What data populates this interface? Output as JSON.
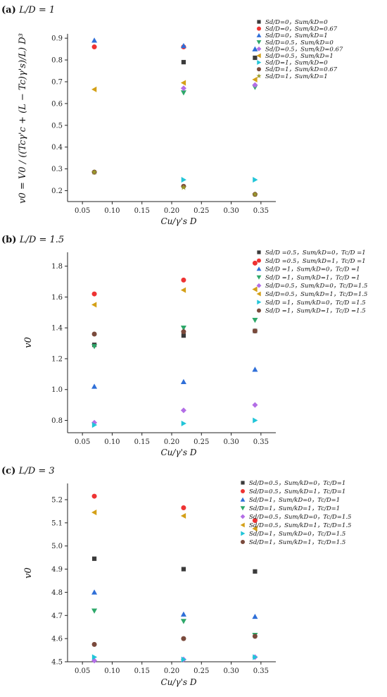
{
  "symbols": [
    "square",
    "circle",
    "triangle-up",
    "triangle-down",
    "diamond",
    "triangle-left",
    "triangle-right",
    "circle",
    "star"
  ],
  "chart_data": [
    {
      "type": "scatter",
      "label_tag": "(a)",
      "title": "L/D = 1",
      "xlabel": "Cu/γ's D",
      "ylabel": "v0 = V0 / ((Tcγ'c + (L − Tc)γ's)/L) D³",
      "xlim": [
        0.025,
        0.375
      ],
      "ylim": [
        0.15,
        0.92
      ],
      "xticks": [
        0.05,
        0.1,
        0.15,
        0.2,
        0.25,
        0.3,
        0.35
      ],
      "xtick_labels": [
        "0.05",
        "0.10",
        "0.15",
        "0.20",
        "0.25",
        "0.30",
        "0.35"
      ],
      "yticks": [
        0.2,
        0.3,
        0.4,
        0.5,
        0.6,
        0.7,
        0.8,
        0.9
      ],
      "ytick_labels": [
        "0.2",
        "0.3",
        "0.4",
        "0.5",
        "0.6",
        "0.7",
        "0.8",
        "0.9"
      ],
      "grid": false,
      "legend_position": "top-right",
      "x": [
        0.07,
        0.22,
        0.34
      ],
      "series": [
        {
          "name": "Sd/D=0，Sum/kD=0",
          "color": "#3a3a3a",
          "symbol": "square",
          "values": [
            null,
            0.79,
            0.81
          ]
        },
        {
          "name": "Sd/D=0，Sum/kD=0.67",
          "color": "#ee3333",
          "symbol": "circle",
          "values": [
            0.86,
            0.86,
            null
          ]
        },
        {
          "name": "Sd/D=0，Sum/kD=1",
          "color": "#2f6fd8",
          "symbol": "triangle-up",
          "values": [
            0.89,
            0.865,
            0.85
          ]
        },
        {
          "name": "Sd/D=0.5，Sum/kD=0",
          "color": "#2ea86a",
          "symbol": "triangle-down",
          "values": [
            null,
            0.65,
            0.675
          ]
        },
        {
          "name": "Sd/D=0.5，Sum/kD=0.67",
          "color": "#b36ee6",
          "symbol": "diamond",
          "values": [
            null,
            0.67,
            0.685
          ]
        },
        {
          "name": "Sd/D=0.5，Sum/kD=1",
          "color": "#d4a017",
          "symbol": "triangle-left",
          "values": [
            0.665,
            0.695,
            0.71
          ]
        },
        {
          "name": "Sd/D=1，Sum/kD=0",
          "color": "#22c5d8",
          "symbol": "triangle-right",
          "values": [
            null,
            0.25,
            0.25
          ]
        },
        {
          "name": "Sd/D=1，Sum/kD=0.67",
          "color": "#7a4a3c",
          "symbol": "circle",
          "values": [
            0.285,
            0.22,
            0.183
          ]
        },
        {
          "name": "Sd/D=1，Sum/kD=1",
          "color": "#9a9a2a",
          "symbol": "star",
          "values": [
            0.285,
            0.215,
            0.183
          ]
        }
      ]
    },
    {
      "type": "scatter",
      "label_tag": "(b)",
      "title": "L/D = 1.5",
      "xlabel": "Cu/γ's D",
      "ylabel": "v0",
      "xlim": [
        0.025,
        0.375
      ],
      "ylim": [
        0.72,
        1.89
      ],
      "xticks": [
        0.05,
        0.1,
        0.15,
        0.2,
        0.25,
        0.3,
        0.35
      ],
      "xtick_labels": [
        "0.05",
        "0.10",
        "0.15",
        "0.20",
        "0.25",
        "0.30",
        "0.35"
      ],
      "yticks": [
        0.8,
        1.0,
        1.2,
        1.4,
        1.6,
        1.8
      ],
      "ytick_labels": [
        "0.8",
        "1.0",
        "1.2",
        "1.4",
        "1.6",
        "1.8"
      ],
      "grid": false,
      "legend_position": "top-right",
      "x": [
        0.07,
        0.22,
        0.34
      ],
      "series": [
        {
          "name": "Sd/D =0.5，Sum/kD=0，Tc/D =1",
          "color": "#3a3a3a",
          "symbol": "square",
          "values": [
            1.29,
            1.35,
            1.38
          ]
        },
        {
          "name": "Sd/D =0.5，Sum/kD=1，Tc/D =1",
          "color": "#ee3333",
          "symbol": "circle",
          "values": [
            1.62,
            1.71,
            1.82
          ]
        },
        {
          "name": "Sd/D =1，Sum/kD=0，Tc/D =1",
          "color": "#2f6fd8",
          "symbol": "triangle-up",
          "values": [
            1.02,
            1.05,
            1.13
          ]
        },
        {
          "name": "Sd/D =1，Sum/kD=1，Tc/D =1",
          "color": "#2ea86a",
          "symbol": "triangle-down",
          "values": [
            1.28,
            1.4,
            1.45
          ]
        },
        {
          "name": "Sd/D=0.5，Sum/kD=0，Tc/D=1.5",
          "color": "#b36ee6",
          "symbol": "diamond",
          "values": [
            0.785,
            0.865,
            0.9
          ]
        },
        {
          "name": "Sd/D=0.5，Sum/kD=1，Tc/D=1.5",
          "color": "#d4a017",
          "symbol": "triangle-left",
          "values": [
            1.55,
            1.645,
            1.65
          ]
        },
        {
          "name": "Sd/D =1，Sum/kD=0，Tc/D =1.5",
          "color": "#22c5d8",
          "symbol": "triangle-right",
          "values": [
            0.77,
            0.78,
            0.8
          ]
        },
        {
          "name": "Sd/D =1，Sum/kD=1，Tc/D =1.5",
          "color": "#7a4a3c",
          "symbol": "circle",
          "values": [
            1.36,
            1.375,
            1.38
          ]
        }
      ]
    },
    {
      "type": "scatter",
      "label_tag": "(c)",
      "title": "L/D = 3",
      "xlabel": "Cu/γ's D",
      "ylabel": "v0",
      "xlim": [
        0.025,
        0.375
      ],
      "ylim": [
        4.5,
        5.27
      ],
      "xticks": [
        0.05,
        0.1,
        0.15,
        0.2,
        0.25,
        0.3,
        0.35
      ],
      "xtick_labels": [
        "0.05",
        "0.10",
        "0.15",
        "0.20",
        "0.25",
        "0.30",
        "0.35"
      ],
      "yticks": [
        4.5,
        4.6,
        4.7,
        4.8,
        4.9,
        5.0,
        5.1,
        5.2
      ],
      "ytick_labels": [
        "4.5",
        "4.6",
        "4.7",
        "4.8",
        "4.9",
        "5.0",
        "5.1",
        "5.2"
      ],
      "grid": false,
      "legend_position": "top-right",
      "x": [
        0.07,
        0.22,
        0.34
      ],
      "series": [
        {
          "name": "Sd/D=0.5，Sum/kD=0，Tc/D=1",
          "color": "#3a3a3a",
          "symbol": "square",
          "values": [
            4.945,
            4.9,
            4.89
          ]
        },
        {
          "name": "Sd/D=0.5，Sum/kD=1，Tc/D=1",
          "color": "#ee3333",
          "symbol": "circle",
          "values": [
            5.215,
            5.165,
            5.11
          ]
        },
        {
          "name": "Sd/D=1，Sum/kD=0，Tc/D=1",
          "color": "#2f6fd8",
          "symbol": "triangle-up",
          "values": [
            4.8,
            4.705,
            4.695
          ]
        },
        {
          "name": "Sd/D=1，Sum/kD=1，Tc/D=1",
          "color": "#2ea86a",
          "symbol": "triangle-down",
          "values": [
            4.72,
            4.675,
            4.615
          ]
        },
        {
          "name": "Sd/D=0.5，Sum/kD=0，Tc/D=1.5",
          "color": "#b36ee6",
          "symbol": "diamond",
          "values": [
            4.505,
            4.51,
            4.52
          ]
        },
        {
          "name": "Sd/D=0.5，Sum/kD=1，Tc/D=1.5",
          "color": "#d4a017",
          "symbol": "triangle-left",
          "values": [
            5.145,
            5.13,
            5.075
          ]
        },
        {
          "name": "Sd/D=1，Sum/kD=0，Tc/D=1.5",
          "color": "#22c5d8",
          "symbol": "triangle-right",
          "values": [
            4.52,
            4.51,
            4.52
          ]
        },
        {
          "name": "Sd/D=1，Sum/kD=1，Tc/D=1.5",
          "color": "#7a4a3c",
          "symbol": "circle",
          "values": [
            4.575,
            4.6,
            4.61
          ]
        }
      ]
    }
  ]
}
